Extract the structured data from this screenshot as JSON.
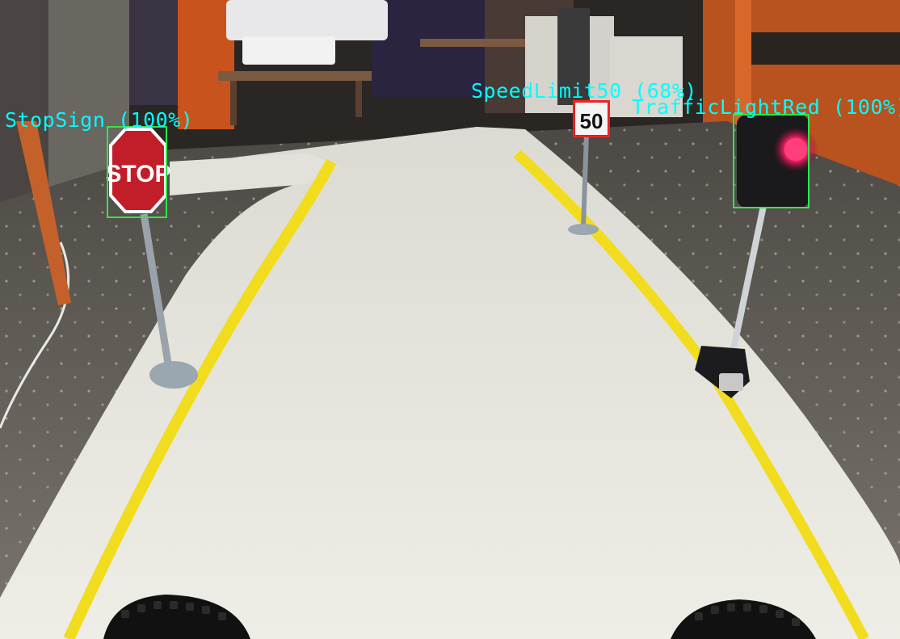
{
  "scene": {
    "description_hidden": "",
    "stop_sign_text": "STOP",
    "speed_sign_text": "50"
  },
  "detections": [
    {
      "label": "StopSign (100%)",
      "color": "#2ee84a"
    },
    {
      "label": "SpeedLimit50 (68%)",
      "color": "#ff2020"
    },
    {
      "label": "TrafficLightRed (100%)",
      "color": "#2ee84a"
    }
  ],
  "colors": {
    "label_text": "#00ffff",
    "lane_line": "#f2dc1e",
    "track": "#ecebe4",
    "floor": "#6f6b64",
    "wall_orange": "#c8541a"
  }
}
